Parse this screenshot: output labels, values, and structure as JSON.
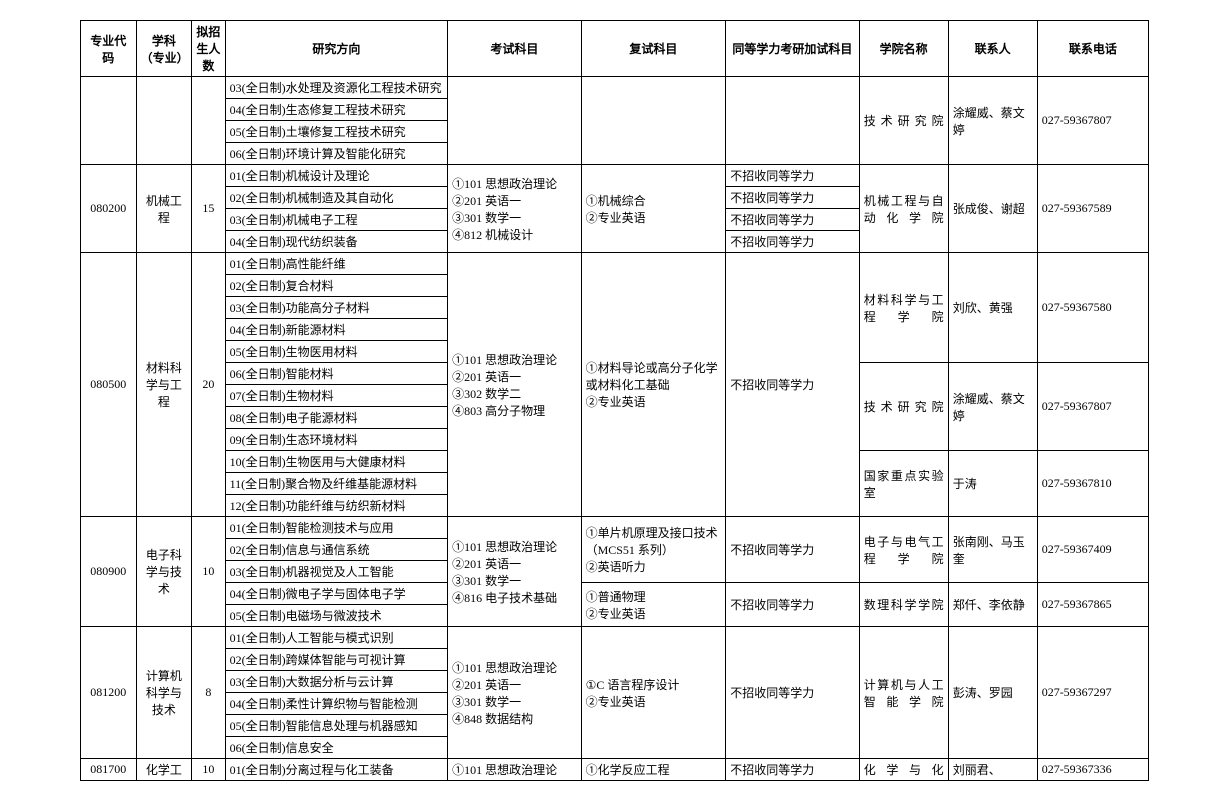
{
  "headers": {
    "code": "专业代码",
    "major": "学科（专业）",
    "quota": "拟招生人数",
    "direction": "研究方向",
    "exam": "考试科目",
    "retest": "复试科目",
    "equiv": "同等学力考研加试科目",
    "college": "学院名称",
    "contact": "联系人",
    "phone": "联系电话"
  },
  "rows": {
    "env_dir03": "03(全日制)水处理及资源化工程技术研究",
    "env_dir04": "04(全日制)生态修复工程技术研究",
    "env_dir05": "05(全日制)土壤修复工程技术研究",
    "env_dir06": "06(全日制)环境计算及智能化研究",
    "env_college": "技术研究院",
    "env_contact": "涂耀威、蔡文婷",
    "env_phone": "027-59367807",
    "mech_code": "080200",
    "mech_major": "机械工程",
    "mech_quota": "15",
    "mech_dir01": "01(全日制)机械设计及理论",
    "mech_dir02": "02(全日制)机械制造及其自动化",
    "mech_dir03": "03(全日制)机械电子工程",
    "mech_dir04": "04(全日制)现代纺织装备",
    "mech_exam": "①101 思想政治理论\n②201 英语一\n③301 数学一\n④812 机械设计",
    "mech_retest": "①机械综合\n②专业英语",
    "mech_equiv": "不招收同等学力",
    "mech_college": "机械工程与自动化学院",
    "mech_contact": "张成俊、谢超",
    "mech_phone": "027-59367589",
    "mat_code": "080500",
    "mat_major": "材料科学与工程",
    "mat_quota": "20",
    "mat_dir01": "01(全日制)高性能纤维",
    "mat_dir02": "02(全日制)复合材料",
    "mat_dir03": "03(全日制)功能高分子材料",
    "mat_dir04": "04(全日制)新能源材料",
    "mat_dir05": "05(全日制)生物医用材料",
    "mat_dir06": "06(全日制)智能材料",
    "mat_dir07": "07(全日制)生物材料",
    "mat_dir08": "08(全日制)电子能源材料",
    "mat_dir09": "09(全日制)生态环境材料",
    "mat_dir10": "10(全日制)生物医用与大健康材料",
    "mat_dir11": "11(全日制)聚合物及纤维基能源材料",
    "mat_dir12": "12(全日制)功能纤维与纺织新材料",
    "mat_exam": "①101 思想政治理论\n②201 英语一\n③302 数学二\n④803 高分子物理",
    "mat_retest": "①材料导论或高分子化学或材料化工基础\n②专业英语",
    "mat_equiv": "不招收同等学力",
    "mat_college1": "材料科学与工程学院",
    "mat_contact1": "刘欣、黄强",
    "mat_phone1": "027-59367580",
    "mat_college2": "技术研究院",
    "mat_contact2": "涂耀威、蔡文婷",
    "mat_phone2": "027-59367807",
    "mat_college3": "国家重点实验室",
    "mat_contact3": "于涛",
    "mat_phone3": "027-59367810",
    "elec_code": "080900",
    "elec_major": "电子科学与技术",
    "elec_quota": "10",
    "elec_dir01": "01(全日制)智能检测技术与应用",
    "elec_dir02": "02(全日制)信息与通信系统",
    "elec_dir03": "03(全日制)机器视觉及人工智能",
    "elec_dir04": "04(全日制)微电子学与固体电子学",
    "elec_dir05": "05(全日制)电磁场与微波技术",
    "elec_exam": "①101 思想政治理论\n②201 英语一\n③301 数学一\n④816 电子技术基础",
    "elec_retest1": "①单片机原理及接口技术（MCS51 系列）\n②英语听力",
    "elec_retest2": "①普通物理\n②专业英语",
    "elec_equiv": "不招收同等学力",
    "elec_college1": "电子与电气工程学院",
    "elec_contact1": "张南刚、马玉奎",
    "elec_phone1": "027-59367409",
    "elec_college2": "数理科学学院",
    "elec_contact2": "郑仟、李依静",
    "elec_phone2": "027-59367865",
    "cs_code": "081200",
    "cs_major": "计算机科学与技术",
    "cs_quota": "8",
    "cs_dir01": "01(全日制)人工智能与模式识别",
    "cs_dir02": "02(全日制)跨媒体智能与可视计算",
    "cs_dir03": "03(全日制)大数据分析与云计算",
    "cs_dir04": "04(全日制)柔性计算织物与智能检测",
    "cs_dir05": "05(全日制)智能信息处理与机器感知",
    "cs_dir06": "06(全日制)信息安全",
    "cs_exam": "①101 思想政治理论\n②201 英语一\n③301 数学一\n④848 数据结构",
    "cs_retest": "①C 语言程序设计\n②专业英语",
    "cs_equiv": "不招收同等学力",
    "cs_college": "计算机与人工智能学院",
    "cs_contact": "彭涛、罗园",
    "cs_phone": "027-59367297",
    "chem_code": "081700",
    "chem_major": "化学工",
    "chem_quota": "10",
    "chem_dir01": "01(全日制)分离过程与化工装备",
    "chem_exam": "①101 思想政治理论",
    "chem_retest": "①化学反应工程",
    "chem_equiv": "不招收同等学力",
    "chem_college": "化学与化",
    "chem_contact": "刘丽君、",
    "chem_phone": "027-59367336"
  }
}
